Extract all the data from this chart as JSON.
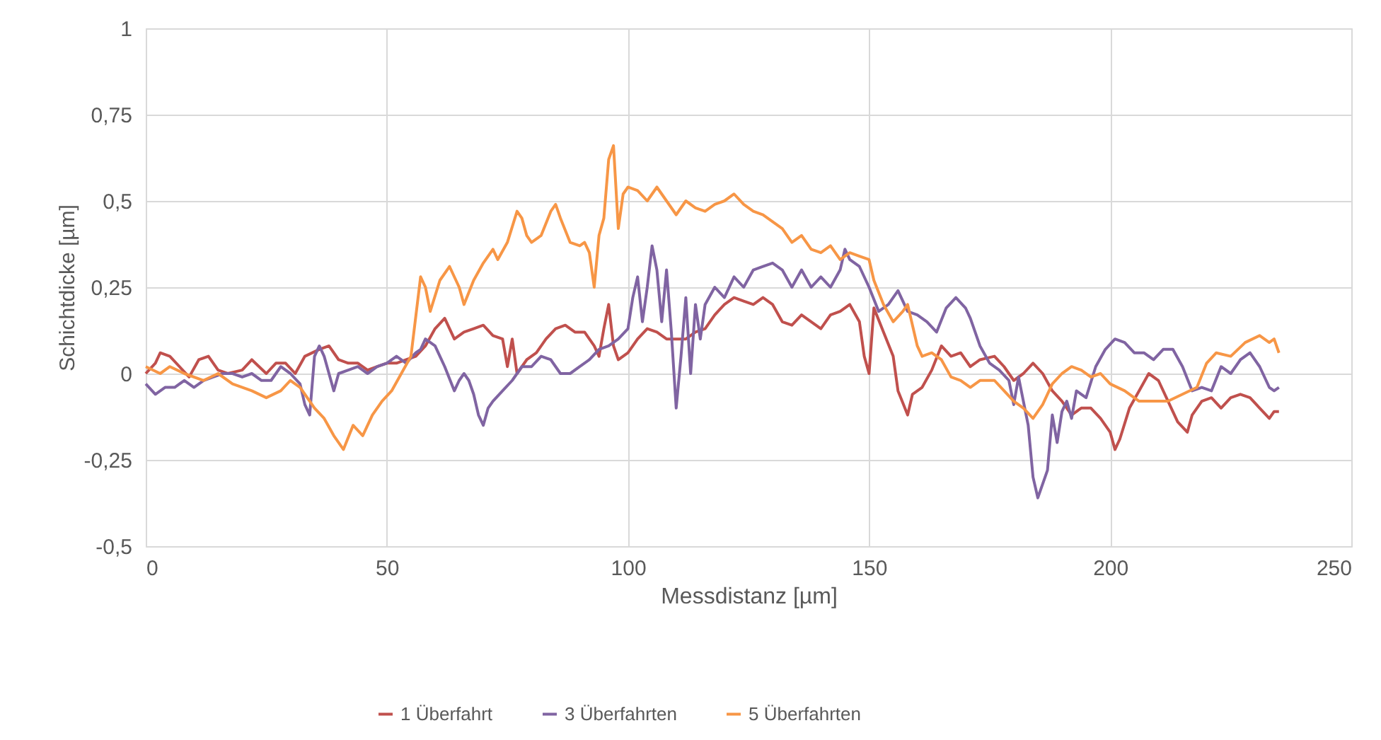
{
  "chart_data": {
    "type": "line",
    "xlabel": "Messdistanz [µm]",
    "ylabel": "Schichtdicke [µm]",
    "xlim": [
      0,
      250
    ],
    "xticks": [
      0,
      50,
      100,
      150,
      200,
      250
    ],
    "ylim": [
      -0.5,
      1
    ],
    "yticks": [
      {
        "value": -0.5,
        "label": "-0,5"
      },
      {
        "value": -0.25,
        "label": "-0,25"
      },
      0,
      {
        "value": 0.25,
        "label": "0,25"
      },
      {
        "value": 0.5,
        "label": "0,5"
      },
      {
        "value": 0.75,
        "label": "0,75"
      },
      1
    ],
    "grid": true,
    "legend": "bottom",
    "marker": "none",
    "line_style": "solid",
    "series": [
      {
        "name": "1 Überfahrt",
        "color": "#c0504d",
        "x": [
          0,
          2,
          3,
          5,
          7,
          9,
          11,
          13,
          15,
          17,
          20,
          22,
          25,
          27,
          29,
          31,
          33,
          36,
          38,
          40,
          42,
          44,
          46,
          48,
          50,
          52,
          54,
          56,
          58,
          60,
          62,
          64,
          66,
          68,
          70,
          72,
          74,
          75,
          76,
          77,
          79,
          81,
          83,
          85,
          87,
          89,
          91,
          93,
          94,
          95,
          96,
          97,
          98,
          100,
          102,
          104,
          106,
          108,
          110,
          112,
          114,
          116,
          118,
          120,
          122,
          124,
          126,
          128,
          130,
          132,
          134,
          136,
          138,
          140,
          142,
          144,
          146,
          148,
          149,
          150,
          151,
          153,
          155,
          156,
          158,
          159,
          161,
          163,
          165,
          167,
          169,
          171,
          173,
          176,
          178,
          180,
          182,
          184,
          186,
          188,
          190,
          192,
          194,
          196,
          198,
          200,
          201,
          202,
          204,
          206,
          208,
          210,
          212,
          214,
          216,
          217,
          219,
          221,
          223,
          225,
          227,
          229,
          231,
          233,
          234,
          235
        ],
        "values": [
          0.0,
          0.03,
          0.06,
          0.05,
          0.02,
          -0.01,
          0.04,
          0.05,
          0.01,
          0.0,
          0.01,
          0.04,
          0.0,
          0.03,
          0.03,
          0.0,
          0.05,
          0.07,
          0.08,
          0.04,
          0.03,
          0.03,
          0.01,
          0.02,
          0.03,
          0.03,
          0.04,
          0.05,
          0.08,
          0.13,
          0.16,
          0.1,
          0.12,
          0.13,
          0.14,
          0.11,
          0.1,
          0.02,
          0.1,
          0.0,
          0.04,
          0.06,
          0.1,
          0.13,
          0.14,
          0.12,
          0.12,
          0.08,
          0.05,
          0.13,
          0.2,
          0.08,
          0.04,
          0.06,
          0.1,
          0.13,
          0.12,
          0.1,
          0.1,
          0.1,
          0.12,
          0.13,
          0.17,
          0.2,
          0.22,
          0.21,
          0.2,
          0.22,
          0.2,
          0.15,
          0.14,
          0.17,
          0.15,
          0.13,
          0.17,
          0.18,
          0.2,
          0.15,
          0.05,
          0.0,
          0.19,
          0.12,
          0.05,
          -0.05,
          -0.12,
          -0.06,
          -0.04,
          0.01,
          0.08,
          0.05,
          0.06,
          0.02,
          0.04,
          0.05,
          0.02,
          -0.02,
          0.0,
          0.03,
          0.0,
          -0.05,
          -0.08,
          -0.12,
          -0.1,
          -0.1,
          -0.13,
          -0.17,
          -0.22,
          -0.19,
          -0.1,
          -0.05,
          0.0,
          -0.02,
          -0.08,
          -0.14,
          -0.17,
          -0.12,
          -0.08,
          -0.07,
          -0.1,
          -0.07,
          -0.06,
          -0.07,
          -0.1,
          -0.13,
          -0.11,
          -0.11
        ]
      },
      {
        "name": "3 Überfahrten",
        "color": "#8064a2",
        "x": [
          0,
          2,
          4,
          6,
          8,
          10,
          12,
          14,
          16,
          18,
          20,
          22,
          24,
          26,
          28,
          30,
          32,
          33,
          34,
          35,
          36,
          37,
          38,
          39,
          40,
          42,
          44,
          46,
          48,
          50,
          52,
          54,
          56,
          57,
          58,
          60,
          62,
          64,
          65,
          66,
          67,
          68,
          69,
          70,
          71,
          72,
          74,
          76,
          78,
          80,
          82,
          84,
          86,
          88,
          90,
          92,
          94,
          96,
          98,
          100,
          101,
          102,
          103,
          104,
          105,
          106,
          107,
          108,
          109,
          110,
          111,
          112,
          113,
          114,
          115,
          116,
          118,
          120,
          122,
          124,
          126,
          128,
          130,
          132,
          134,
          136,
          138,
          140,
          142,
          144,
          145,
          146,
          148,
          150,
          152,
          154,
          156,
          158,
          160,
          162,
          164,
          166,
          168,
          170,
          171,
          173,
          175,
          177,
          179,
          180,
          181,
          182,
          183,
          184,
          185,
          186,
          187,
          188,
          189,
          190,
          191,
          192,
          193,
          195,
          197,
          199,
          201,
          203,
          205,
          207,
          209,
          211,
          213,
          215,
          217,
          219,
          221,
          223,
          225,
          227,
          229,
          231,
          233,
          234,
          235
        ],
        "values": [
          -0.03,
          -0.06,
          -0.04,
          -0.04,
          -0.02,
          -0.04,
          -0.02,
          -0.01,
          0.0,
          0.0,
          -0.01,
          0.0,
          -0.02,
          -0.02,
          0.02,
          0.0,
          -0.03,
          -0.09,
          -0.12,
          0.05,
          0.08,
          0.05,
          0.0,
          -0.05,
          0.0,
          0.01,
          0.02,
          0.0,
          0.02,
          0.03,
          0.05,
          0.03,
          0.06,
          0.07,
          0.1,
          0.08,
          0.02,
          -0.05,
          -0.02,
          0.0,
          -0.02,
          -0.06,
          -0.12,
          -0.15,
          -0.1,
          -0.08,
          -0.05,
          -0.02,
          0.02,
          0.02,
          0.05,
          0.04,
          0.0,
          0.0,
          0.02,
          0.04,
          0.07,
          0.08,
          0.1,
          0.13,
          0.22,
          0.28,
          0.15,
          0.25,
          0.37,
          0.3,
          0.15,
          0.3,
          0.12,
          -0.1,
          0.05,
          0.22,
          0.0,
          0.2,
          0.1,
          0.2,
          0.25,
          0.22,
          0.28,
          0.25,
          0.3,
          0.31,
          0.32,
          0.3,
          0.25,
          0.3,
          0.25,
          0.28,
          0.25,
          0.3,
          0.36,
          0.33,
          0.31,
          0.25,
          0.18,
          0.2,
          0.24,
          0.18,
          0.17,
          0.15,
          0.12,
          0.19,
          0.22,
          0.19,
          0.16,
          0.08,
          0.03,
          0.01,
          -0.02,
          -0.09,
          -0.01,
          -0.08,
          -0.15,
          -0.3,
          -0.36,
          -0.32,
          -0.28,
          -0.12,
          -0.2,
          -0.11,
          -0.08,
          -0.13,
          -0.05,
          -0.07,
          0.02,
          0.07,
          0.1,
          0.09,
          0.06,
          0.06,
          0.04,
          0.07,
          0.07,
          0.02,
          -0.05,
          -0.04,
          -0.05,
          0.02,
          0.0,
          0.04,
          0.06,
          0.02,
          -0.04,
          -0.05,
          -0.04
        ]
      },
      {
        "name": "5 Überfahrten",
        "color": "#f79646",
        "x": [
          0,
          3,
          5,
          8,
          12,
          15,
          18,
          22,
          25,
          28,
          30,
          32,
          35,
          37,
          39,
          41,
          43,
          45,
          47,
          49,
          51,
          53,
          55,
          57,
          58,
          59,
          61,
          63,
          65,
          66,
          68,
          70,
          72,
          73,
          75,
          77,
          78,
          79,
          80,
          82,
          84,
          85,
          86,
          88,
          90,
          91,
          92,
          93,
          94,
          95,
          96,
          97,
          98,
          99,
          100,
          102,
          104,
          106,
          108,
          110,
          112,
          114,
          116,
          118,
          120,
          122,
          124,
          126,
          128,
          130,
          132,
          134,
          136,
          138,
          140,
          142,
          144,
          146,
          148,
          150,
          151,
          153,
          155,
          157,
          158,
          160,
          161,
          163,
          165,
          167,
          169,
          171,
          173,
          176,
          178,
          180,
          182,
          184,
          186,
          188,
          190,
          192,
          194,
          196,
          198,
          200,
          203,
          206,
          209,
          212,
          215,
          218,
          220,
          222,
          225,
          228,
          231,
          233,
          234,
          235
        ],
        "values": [
          0.02,
          0.0,
          0.02,
          0.0,
          -0.02,
          0.0,
          -0.03,
          -0.05,
          -0.07,
          -0.05,
          -0.02,
          -0.04,
          -0.1,
          -0.13,
          -0.18,
          -0.22,
          -0.15,
          -0.18,
          -0.12,
          -0.08,
          -0.05,
          0.0,
          0.05,
          0.28,
          0.25,
          0.18,
          0.27,
          0.31,
          0.25,
          0.2,
          0.27,
          0.32,
          0.36,
          0.33,
          0.38,
          0.47,
          0.45,
          0.4,
          0.38,
          0.4,
          0.47,
          0.49,
          0.45,
          0.38,
          0.37,
          0.38,
          0.35,
          0.25,
          0.4,
          0.45,
          0.62,
          0.66,
          0.42,
          0.52,
          0.54,
          0.53,
          0.5,
          0.54,
          0.5,
          0.46,
          0.5,
          0.48,
          0.47,
          0.49,
          0.5,
          0.52,
          0.49,
          0.47,
          0.46,
          0.44,
          0.42,
          0.38,
          0.4,
          0.36,
          0.35,
          0.37,
          0.33,
          0.35,
          0.34,
          0.33,
          0.27,
          0.2,
          0.15,
          0.18,
          0.2,
          0.08,
          0.05,
          0.06,
          0.04,
          -0.01,
          -0.02,
          -0.04,
          -0.02,
          -0.02,
          -0.05,
          -0.08,
          -0.1,
          -0.13,
          -0.09,
          -0.03,
          0.0,
          0.02,
          0.01,
          -0.01,
          0.0,
          -0.03,
          -0.05,
          -0.08,
          -0.08,
          -0.08,
          -0.06,
          -0.04,
          0.03,
          0.06,
          0.05,
          0.09,
          0.11,
          0.09,
          0.1,
          0.06
        ]
      }
    ]
  }
}
